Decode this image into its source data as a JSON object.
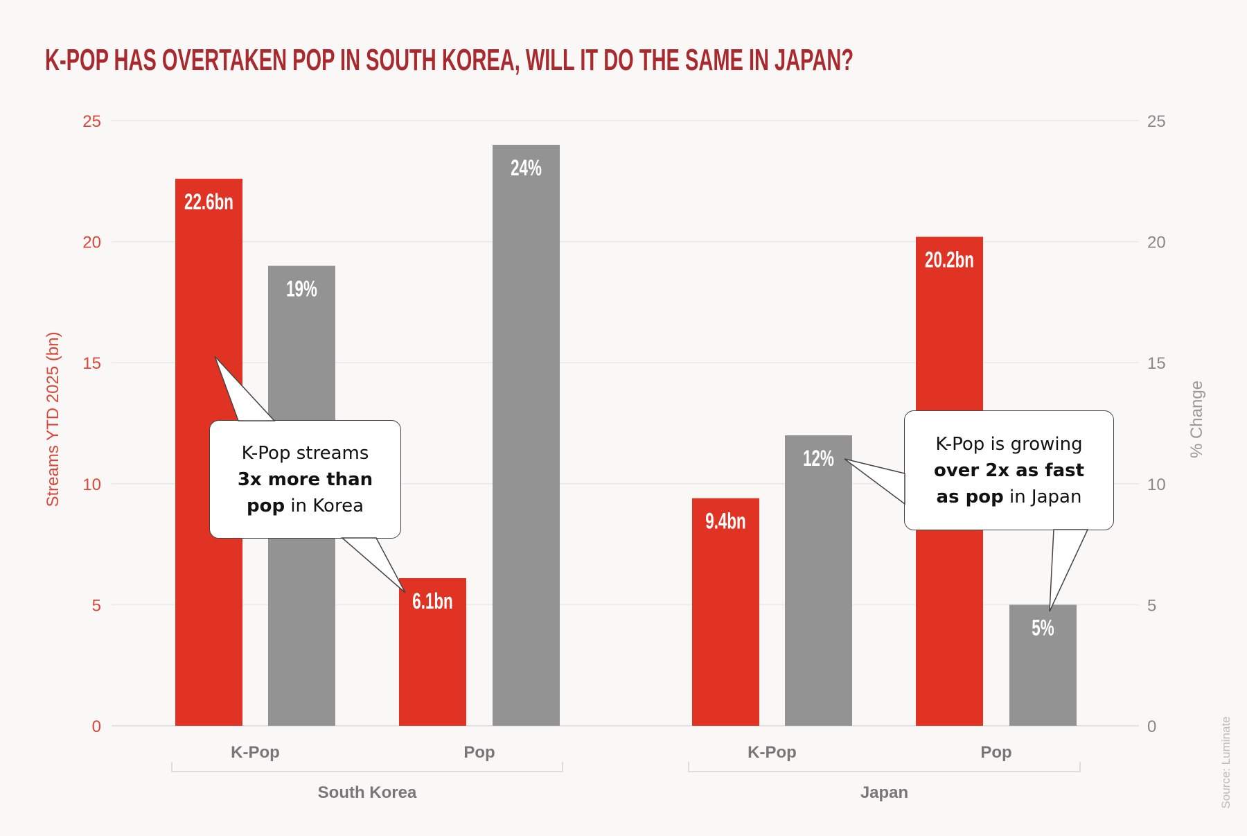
{
  "chart_data": {
    "type": "bar",
    "title": "K-POP HAS OVERTAKEN POP IN SOUTH KOREA, WILL IT DO THE SAME IN JAPAN?",
    "ylabel": "Streams YTD 2025 (bn)",
    "y2label": "% Change",
    "ylim": [
      0,
      25
    ],
    "y2lim": [
      0,
      25
    ],
    "yticks": [
      0,
      5,
      10,
      15,
      20,
      25
    ],
    "grid": true,
    "groups": [
      "South Korea",
      "Japan"
    ],
    "categories": [
      "K-Pop",
      "Pop",
      "K-Pop",
      "Pop"
    ],
    "series": [
      {
        "name": "Streams YTD 2025 (bn)",
        "axis": "left",
        "color": "#e03324",
        "values": [
          22.6,
          6.1,
          9.4,
          20.2
        ],
        "labels": [
          "22.6bn",
          "6.1bn",
          "9.4bn",
          "20.2bn"
        ]
      },
      {
        "name": "% Change",
        "axis": "right",
        "color": "#939393",
        "values": [
          19,
          24,
          12,
          5
        ],
        "labels": [
          "19%",
          "24%",
          "12%",
          "5%"
        ]
      }
    ],
    "annotations": [
      {
        "parts": [
          [
            "K-Pop streams",
            false
          ],
          [
            "3x more than",
            true
          ],
          [
            "pop",
            true
          ],
          [
            " in Korea",
            false
          ]
        ]
      },
      {
        "parts": [
          [
            "K-Pop is growing",
            false
          ],
          [
            "over 2x as fast",
            true
          ],
          [
            "as pop",
            true
          ],
          [
            " in Japan",
            false
          ]
        ]
      }
    ],
    "source": "Source: Luminate"
  },
  "colors": {
    "title": "#a92a2e",
    "red": "#e03324",
    "gray": "#939393",
    "background": "#f9f8f7"
  }
}
